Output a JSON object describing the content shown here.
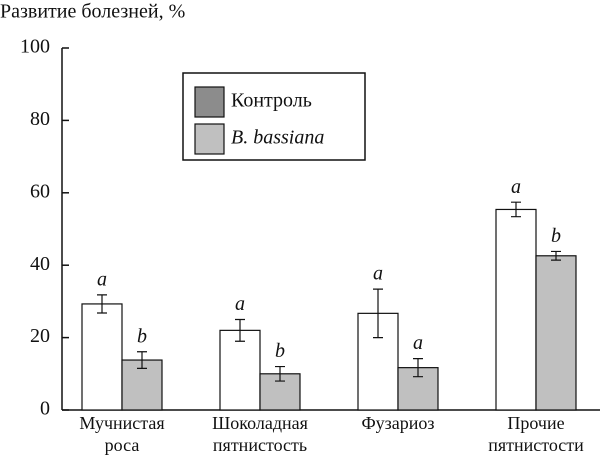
{
  "chart_data": {
    "type": "bar",
    "title": "Развитие болезней, %",
    "categories": [
      [
        "Мучнистая",
        "роса"
      ],
      [
        "Шоколадная",
        "пятнистость"
      ],
      [
        "Фузариоз"
      ],
      [
        "Прочие",
        "пятнистости"
      ]
    ],
    "series": [
      {
        "name": "Контроль",
        "color": "#ffffff",
        "legend_color": "#8c8c8c",
        "values": [
          29.3,
          22,
          26.7,
          55.4
        ],
        "errors": [
          2.5,
          3,
          6.7,
          2
        ],
        "labels": [
          "a",
          "a",
          "a",
          "a"
        ]
      },
      {
        "name": "B. bassiana",
        "color": "#c0c0c0",
        "legend_color": "#c0c0c0",
        "values": [
          13.8,
          10,
          11.7,
          42.6
        ],
        "errors": [
          2.3,
          2,
          2.5,
          1.2
        ],
        "labels": [
          "b",
          "b",
          "a",
          "b"
        ]
      }
    ],
    "ylim": [
      0,
      100
    ],
    "yticks": [
      0,
      20,
      40,
      60,
      80,
      100
    ]
  }
}
